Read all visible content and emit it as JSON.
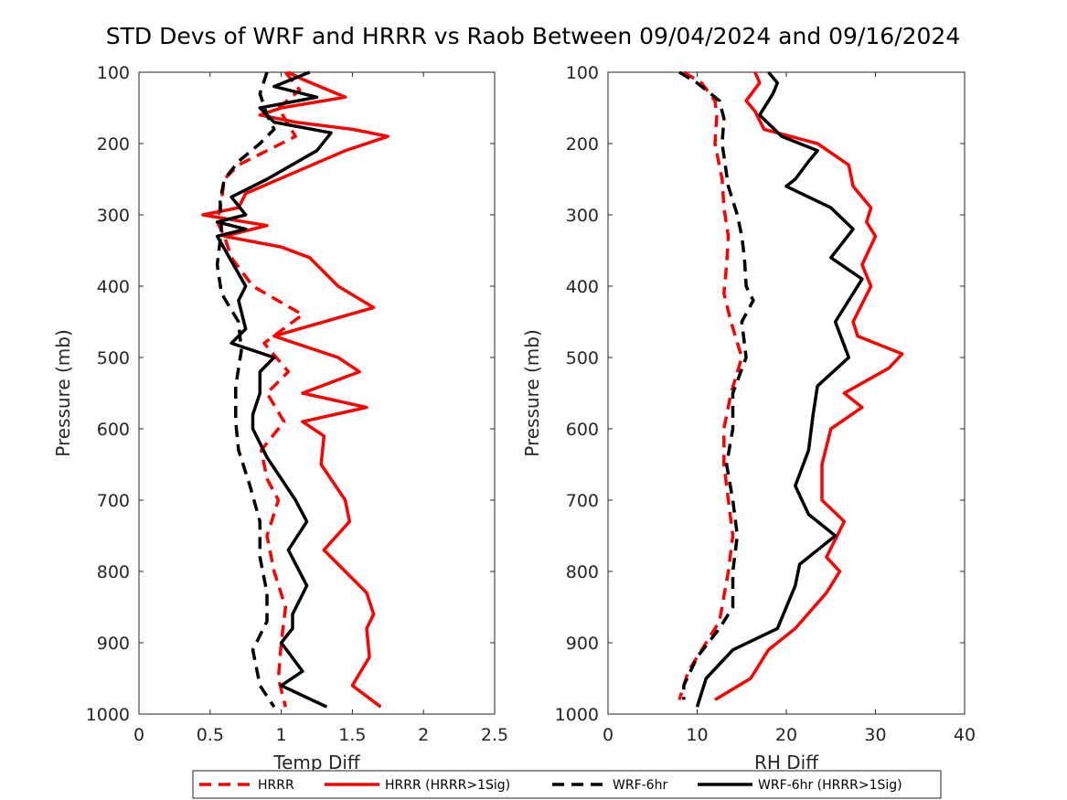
{
  "figure": {
    "title": "STD Devs of WRF and HRRR vs Raob Between 09/04/2024 and 09/16/2024"
  },
  "legend": {
    "placement": "bottom",
    "entries": [
      {
        "label": "HRRR",
        "color": "#ff0000",
        "style": "dashed"
      },
      {
        "label": "HRRR (HRRR>1Sig)",
        "color": "#ff0000",
        "style": "solid"
      },
      {
        "label": "WRF-6hr",
        "color": "#000000",
        "style": "dashed"
      },
      {
        "label": "WRF-6hr (HRRR>1Sig)",
        "color": "#000000",
        "style": "solid"
      }
    ]
  },
  "chart_data": [
    {
      "type": "line",
      "xlabel": "Temp Diff",
      "ylabel": "Pressure (mb)",
      "xlim": [
        0,
        2.5
      ],
      "ylim": [
        100,
        1000
      ],
      "y_reversed": true,
      "xticks": [
        "0",
        "0.5",
        "1",
        "1.5",
        "2",
        "2.5"
      ],
      "yticks": [
        "100",
        "200",
        "300",
        "400",
        "500",
        "600",
        "700",
        "800",
        "900",
        "1000"
      ],
      "series": [
        {
          "name": "HRRR",
          "color": "#ff0000",
          "style": "dashed",
          "points": [
            [
              1.03,
              100
            ],
            [
              1.13,
              125
            ],
            [
              0.98,
              150
            ],
            [
              1.1,
              190
            ],
            [
              0.9,
              210
            ],
            [
              0.7,
              230
            ],
            [
              0.6,
              250
            ],
            [
              0.58,
              280
            ],
            [
              0.55,
              310
            ],
            [
              0.6,
              330
            ],
            [
              0.65,
              360
            ],
            [
              0.8,
              400
            ],
            [
              1.15,
              440
            ],
            [
              0.88,
              480
            ],
            [
              1.05,
              520
            ],
            [
              0.9,
              550
            ],
            [
              1.02,
              590
            ],
            [
              0.86,
              630
            ],
            [
              0.9,
              670
            ],
            [
              0.98,
              700
            ],
            [
              0.9,
              750
            ],
            [
              0.95,
              800
            ],
            [
              1.03,
              850
            ],
            [
              1.0,
              900
            ],
            [
              0.98,
              950
            ],
            [
              1.03,
              990
            ]
          ]
        },
        {
          "name": "HRRR (HRRR>1Sig)",
          "color": "#ff0000",
          "style": "solid",
          "points": [
            [
              1.05,
              100
            ],
            [
              1.15,
              110
            ],
            [
              1.45,
              135
            ],
            [
              1.0,
              150
            ],
            [
              0.85,
              160
            ],
            [
              1.1,
              170
            ],
            [
              1.5,
              180
            ],
            [
              1.75,
              190
            ],
            [
              1.45,
              210
            ],
            [
              1.1,
              240
            ],
            [
              0.75,
              270
            ],
            [
              0.7,
              290
            ],
            [
              0.45,
              300
            ],
            [
              0.9,
              315
            ],
            [
              0.6,
              330
            ],
            [
              1.0,
              345
            ],
            [
              1.2,
              360
            ],
            [
              1.4,
              400
            ],
            [
              1.65,
              430
            ],
            [
              0.95,
              470
            ],
            [
              1.4,
              500
            ],
            [
              1.55,
              520
            ],
            [
              1.15,
              550
            ],
            [
              1.6,
              570
            ],
            [
              1.15,
              590
            ],
            [
              1.3,
              610
            ],
            [
              1.28,
              650
            ],
            [
              1.45,
              700
            ],
            [
              1.48,
              730
            ],
            [
              1.3,
              770
            ],
            [
              1.6,
              830
            ],
            [
              1.65,
              860
            ],
            [
              1.6,
              880
            ],
            [
              1.62,
              920
            ],
            [
              1.5,
              960
            ],
            [
              1.7,
              990
            ]
          ]
        },
        {
          "name": "WRF-6hr",
          "color": "#000000",
          "style": "dashed",
          "points": [
            [
              0.9,
              100
            ],
            [
              0.85,
              130
            ],
            [
              0.9,
              160
            ],
            [
              0.95,
              180
            ],
            [
              0.85,
              200
            ],
            [
              0.7,
              225
            ],
            [
              0.6,
              250
            ],
            [
              0.57,
              280
            ],
            [
              0.58,
              320
            ],
            [
              0.55,
              370
            ],
            [
              0.58,
              410
            ],
            [
              0.7,
              450
            ],
            [
              0.72,
              490
            ],
            [
              0.68,
              540
            ],
            [
              0.68,
              590
            ],
            [
              0.7,
              630
            ],
            [
              0.78,
              680
            ],
            [
              0.85,
              730
            ],
            [
              0.85,
              780
            ],
            [
              0.9,
              830
            ],
            [
              0.9,
              870
            ],
            [
              0.8,
              910
            ],
            [
              0.85,
              960
            ],
            [
              0.95,
              990
            ]
          ]
        },
        {
          "name": "WRF-6hr (HRRR>1Sig)",
          "color": "#000000",
          "style": "solid",
          "points": [
            [
              1.2,
              100
            ],
            [
              0.95,
              120
            ],
            [
              1.25,
              135
            ],
            [
              0.85,
              150
            ],
            [
              0.95,
              170
            ],
            [
              1.35,
              185
            ],
            [
              1.25,
              210
            ],
            [
              0.9,
              250
            ],
            [
              0.65,
              275
            ],
            [
              0.75,
              300
            ],
            [
              0.55,
              310
            ],
            [
              0.75,
              320
            ],
            [
              0.55,
              330
            ],
            [
              0.75,
              400
            ],
            [
              0.7,
              420
            ],
            [
              0.75,
              460
            ],
            [
              0.65,
              480
            ],
            [
              0.95,
              500
            ],
            [
              0.85,
              520
            ],
            [
              0.85,
              550
            ],
            [
              0.8,
              580
            ],
            [
              0.8,
              600
            ],
            [
              0.9,
              640
            ],
            [
              1.1,
              700
            ],
            [
              1.18,
              730
            ],
            [
              1.05,
              770
            ],
            [
              1.18,
              820
            ],
            [
              1.08,
              860
            ],
            [
              1.08,
              880
            ],
            [
              1.0,
              900
            ],
            [
              1.15,
              940
            ],
            [
              1.0,
              960
            ],
            [
              1.32,
              990
            ]
          ]
        }
      ]
    },
    {
      "type": "line",
      "xlabel": "RH Diff",
      "ylabel": "Pressure (mb)",
      "xlim": [
        0,
        40
      ],
      "ylim": [
        100,
        1000
      ],
      "y_reversed": true,
      "xticks": [
        "0",
        "10",
        "20",
        "30",
        "40"
      ],
      "yticks": [
        "100",
        "200",
        "300",
        "400",
        "500",
        "600",
        "700",
        "800",
        "900",
        "1000"
      ],
      "series": [
        {
          "name": "HRRR",
          "color": "#ff0000",
          "style": "dashed",
          "points": [
            [
              8.5,
              100
            ],
            [
              10.5,
              115
            ],
            [
              12.0,
              140
            ],
            [
              12.2,
              160
            ],
            [
              12.0,
              200
            ],
            [
              12.8,
              250
            ],
            [
              13.0,
              290
            ],
            [
              13.5,
              330
            ],
            [
              13.3,
              370
            ],
            [
              13.0,
              410
            ],
            [
              13.8,
              450
            ],
            [
              15.0,
              500
            ],
            [
              13.8,
              550
            ],
            [
              13.0,
              600
            ],
            [
              13.0,
              650
            ],
            [
              13.5,
              700
            ],
            [
              14.0,
              750
            ],
            [
              13.5,
              800
            ],
            [
              12.5,
              870
            ],
            [
              11.0,
              900
            ],
            [
              9.0,
              940
            ],
            [
              8.0,
              980
            ]
          ]
        },
        {
          "name": "HRRR (HRRR>1Sig)",
          "color": "#ff0000",
          "style": "solid",
          "points": [
            [
              16.5,
              100
            ],
            [
              17.0,
              115
            ],
            [
              15.5,
              140
            ],
            [
              16.5,
              155
            ],
            [
              17.5,
              180
            ],
            [
              23.5,
              200
            ],
            [
              27.0,
              230
            ],
            [
              27.5,
              260
            ],
            [
              29.5,
              290
            ],
            [
              29.0,
              310
            ],
            [
              30.0,
              330
            ],
            [
              28.5,
              370
            ],
            [
              29.5,
              400
            ],
            [
              27.5,
              450
            ],
            [
              28.0,
              470
            ],
            [
              33.0,
              495
            ],
            [
              31.5,
              515
            ],
            [
              26.5,
              550
            ],
            [
              28.5,
              570
            ],
            [
              25.0,
              600
            ],
            [
              24.0,
              650
            ],
            [
              24.0,
              700
            ],
            [
              26.5,
              730
            ],
            [
              24.5,
              780
            ],
            [
              26.0,
              800
            ],
            [
              24.5,
              830
            ],
            [
              21.0,
              880
            ],
            [
              18.0,
              910
            ],
            [
              16.0,
              950
            ],
            [
              12.0,
              980
            ]
          ]
        },
        {
          "name": "WRF-6hr",
          "color": "#000000",
          "style": "dashed",
          "points": [
            [
              8.0,
              100
            ],
            [
              10.0,
              115
            ],
            [
              12.5,
              140
            ],
            [
              13.0,
              165
            ],
            [
              12.8,
              200
            ],
            [
              13.5,
              260
            ],
            [
              14.5,
              300
            ],
            [
              15.0,
              330
            ],
            [
              15.3,
              360
            ],
            [
              15.5,
              400
            ],
            [
              16.3,
              420
            ],
            [
              15.0,
              450
            ],
            [
              15.5,
              500
            ],
            [
              14.0,
              550
            ],
            [
              14.0,
              600
            ],
            [
              13.3,
              650
            ],
            [
              14.0,
              700
            ],
            [
              14.5,
              750
            ],
            [
              14.0,
              800
            ],
            [
              14.0,
              850
            ],
            [
              12.5,
              880
            ],
            [
              10.0,
              920
            ],
            [
              8.5,
              960
            ],
            [
              8.5,
              980
            ]
          ]
        },
        {
          "name": "WRF-6hr (HRRR>1Sig)",
          "color": "#000000",
          "style": "solid",
          "points": [
            [
              18.0,
              100
            ],
            [
              19.0,
              115
            ],
            [
              18.5,
              130
            ],
            [
              17.0,
              160
            ],
            [
              19.5,
              190
            ],
            [
              23.5,
              210
            ],
            [
              22.5,
              225
            ],
            [
              21.0,
              250
            ],
            [
              20.0,
              260
            ],
            [
              25.0,
              290
            ],
            [
              27.5,
              320
            ],
            [
              25.0,
              360
            ],
            [
              28.5,
              390
            ],
            [
              27.0,
              420
            ],
            [
              25.5,
              450
            ],
            [
              27.0,
              500
            ],
            [
              23.5,
              540
            ],
            [
              23.0,
              580
            ],
            [
              22.5,
              630
            ],
            [
              21.0,
              680
            ],
            [
              22.5,
              720
            ],
            [
              25.5,
              750
            ],
            [
              21.5,
              790
            ],
            [
              21.0,
              820
            ],
            [
              19.0,
              880
            ],
            [
              14.0,
              910
            ],
            [
              11.0,
              950
            ],
            [
              10.0,
              990
            ]
          ]
        }
      ]
    }
  ]
}
